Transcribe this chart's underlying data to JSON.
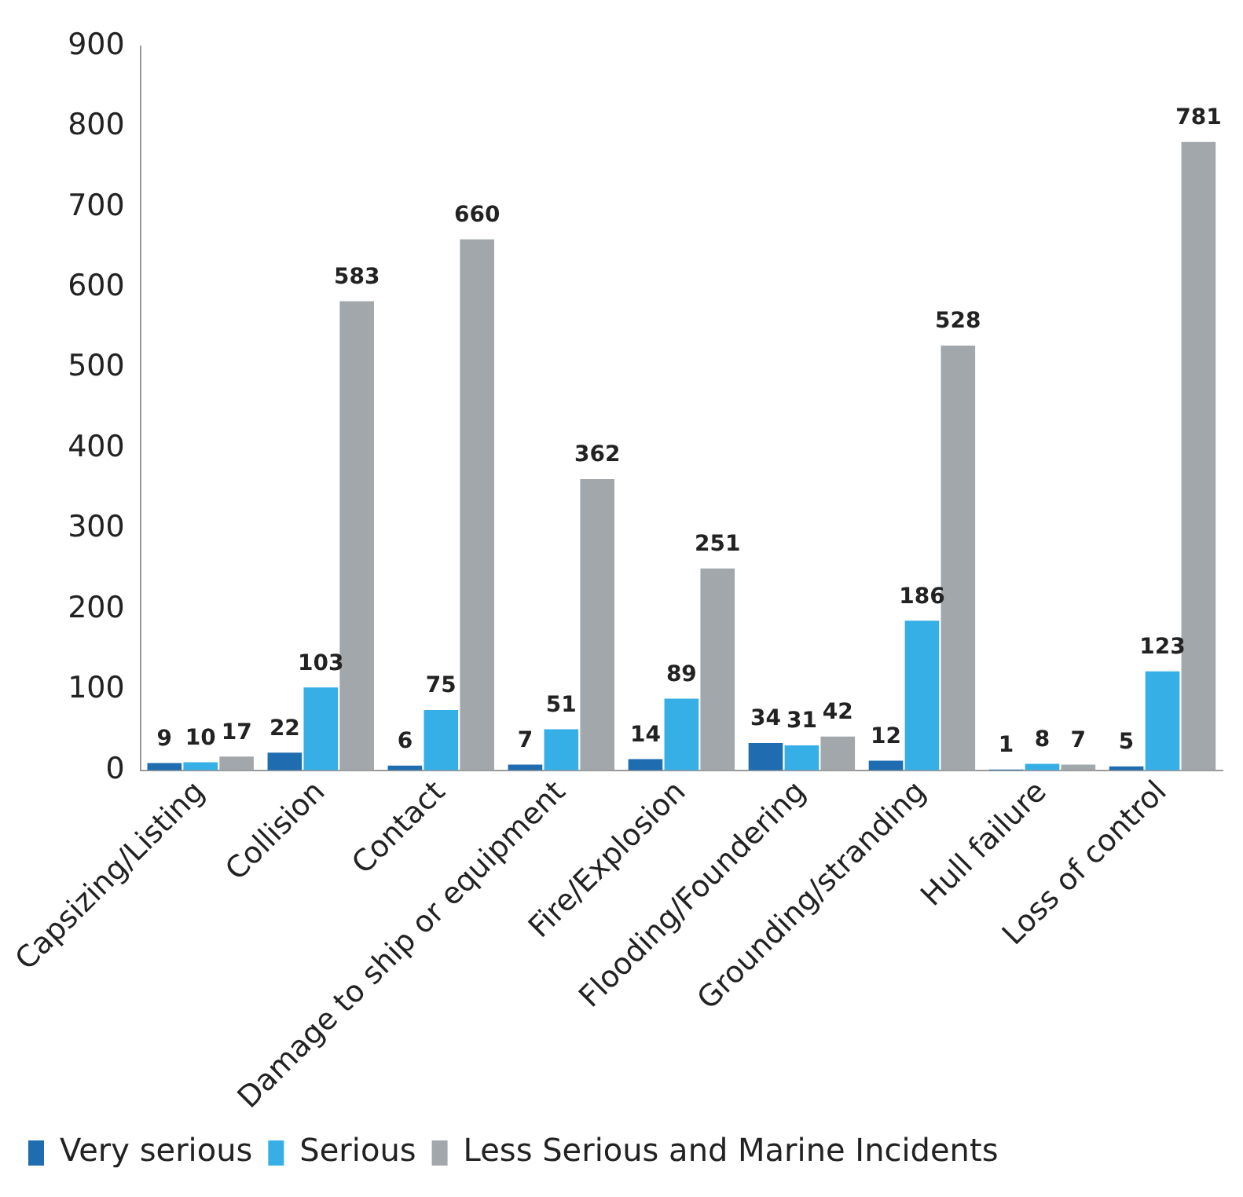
{
  "chart_data": {
    "type": "bar",
    "categories": [
      "Capsizing/Listing",
      "Collision",
      "Contact",
      "Damage to ship or equipment",
      "Fire/Explosion",
      "Flooding/Foundering",
      "Grounding/stranding",
      "Hull failure",
      "Loss of control"
    ],
    "series": [
      {
        "name": "Very serious",
        "color": "#1f6cb0",
        "values": [
          9,
          22,
          6,
          7,
          14,
          34,
          12,
          1,
          5
        ]
      },
      {
        "name": "Serious",
        "color": "#36afe6",
        "values": [
          10,
          103,
          75,
          51,
          89,
          31,
          186,
          8,
          123
        ]
      },
      {
        "name": "Less Serious and Marine Incidents",
        "color": "#a2a7ab",
        "values": [
          17,
          583,
          660,
          362,
          251,
          42,
          528,
          7,
          781
        ]
      }
    ],
    "ylim": [
      0,
      900
    ],
    "yticks": [
      0,
      100,
      200,
      300,
      400,
      500,
      600,
      700,
      800,
      900
    ],
    "grid": false,
    "legend": "bottom",
    "data_labels": true
  }
}
